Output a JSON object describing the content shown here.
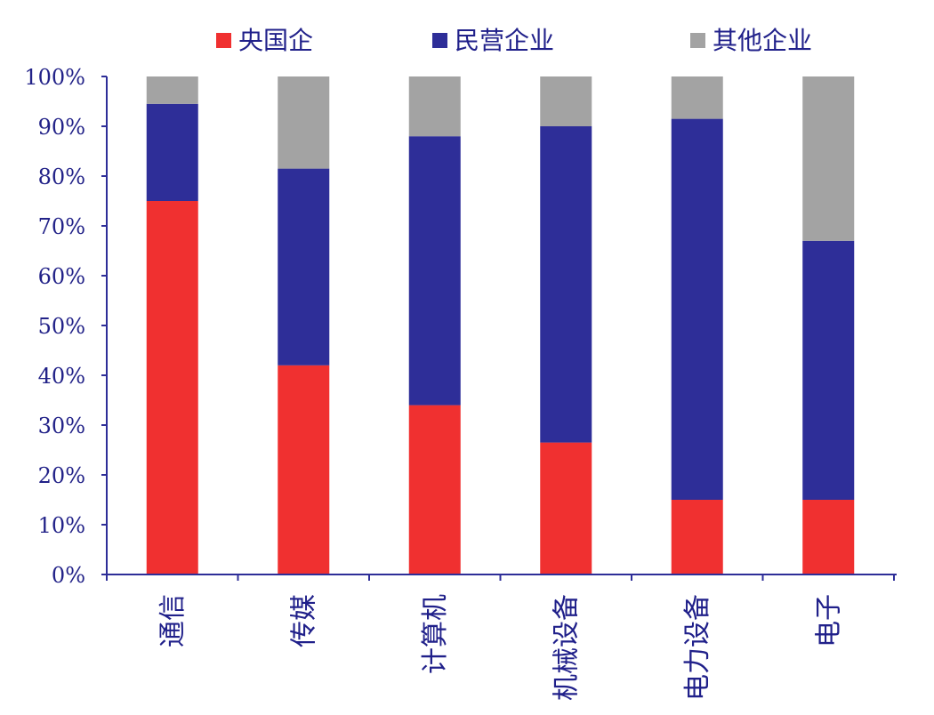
{
  "chart_data": {
    "type": "bar",
    "stacked": true,
    "categories": [
      "通信",
      "传媒",
      "计算机",
      "机械设备",
      "电力设备",
      "电子"
    ],
    "series": [
      {
        "name": "央国企",
        "color": "#f03030",
        "values": [
          75,
          42,
          34,
          26.5,
          15,
          15
        ]
      },
      {
        "name": "民营企业",
        "color": "#2e2e98",
        "values": [
          19.5,
          39.5,
          54,
          63.5,
          76.5,
          52
        ]
      },
      {
        "name": "其他企业",
        "color": "#a3a3a3",
        "values": [
          5.5,
          18.5,
          12,
          10,
          8.5,
          33
        ]
      }
    ],
    "ylim": [
      0,
      100
    ],
    "yticks": [
      "0%",
      "10%",
      "20%",
      "30%",
      "40%",
      "50%",
      "60%",
      "70%",
      "80%",
      "90%",
      "100%"
    ],
    "axis_color": "#2e2e98",
    "legend_position": "top",
    "grid": false
  }
}
